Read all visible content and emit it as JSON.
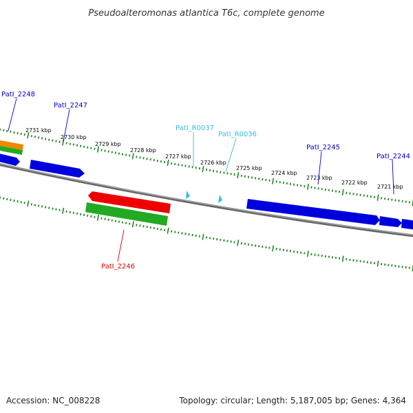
{
  "title": "Pseudoalteromonas atlantica T6c, complete genome",
  "footer": {
    "accession": "Accession: NC_008228",
    "summary": "Topology: circular; Length: 5,187,005 bp; Genes: 4,364"
  },
  "colors": {
    "backbone": "#808080",
    "forward_cds": "#0000dd",
    "reverse_cds": "#ee0000",
    "orange_feature": "#ee8800",
    "green_feature": "#22aa22",
    "rna": "#33bbee",
    "tick": "#228822",
    "label_blue": "#0000cc",
    "label_red": "#dd0000",
    "label_cyan": "#33bbdd"
  },
  "scale": {
    "ticks": [
      {
        "label": "2731 kbp"
      },
      {
        "label": "2730 kbp"
      },
      {
        "label": "2729 kbp"
      },
      {
        "label": "2728 kbp"
      },
      {
        "label": "2727 kbp"
      },
      {
        "label": "2726 kbp"
      },
      {
        "label": "2725 kbp"
      },
      {
        "label": "2724 kbp"
      },
      {
        "label": "2723 kbp"
      },
      {
        "label": "2722 kbp"
      },
      {
        "label": "2721 kbp"
      }
    ]
  },
  "genes": [
    {
      "label": "PatI_2248",
      "strand": "forward"
    },
    {
      "label": "PatI_2247",
      "strand": "forward"
    },
    {
      "label": "PatI_R0037",
      "strand": "forward",
      "type": "rna"
    },
    {
      "label": "PatI_R0036",
      "strand": "forward",
      "type": "rna"
    },
    {
      "label": "PatI_2245",
      "strand": "forward"
    },
    {
      "label": "PatI_2244",
      "strand": "forward"
    },
    {
      "label": "PatI_2246",
      "strand": "reverse"
    }
  ]
}
